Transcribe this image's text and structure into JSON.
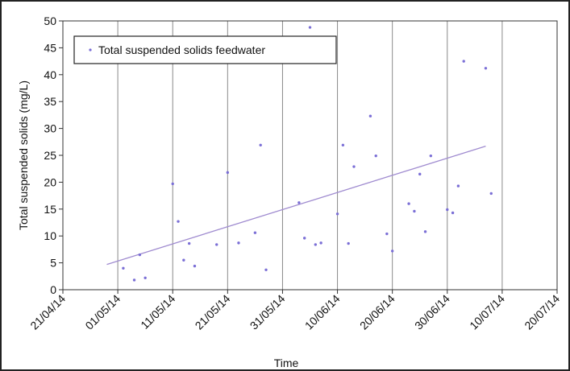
{
  "chart_data": {
    "type": "scatter",
    "title": "",
    "xlabel": "Time",
    "ylabel": "Total suspended solids (mg/L)",
    "xlim": [
      "2014-04-21",
      "2014-07-20"
    ],
    "ylim": [
      0,
      50
    ],
    "x_tick_labels": [
      "21/04/14",
      "01/05/14",
      "11/05/14",
      "21/05/14",
      "31/05/14",
      "10/06/14",
      "20/06/14",
      "30/06/14",
      "10/07/14",
      "20/07/14"
    ],
    "x_ticks": [
      "2014-04-21",
      "2014-05-01",
      "2014-05-11",
      "2014-05-21",
      "2014-05-31",
      "2014-06-10",
      "2014-06-20",
      "2014-06-30",
      "2014-07-10",
      "2014-07-20"
    ],
    "y_ticks": [
      0,
      5,
      10,
      15,
      20,
      25,
      30,
      35,
      40,
      45,
      50
    ],
    "grid": "vertical",
    "legend_position": "top-left",
    "series": [
      {
        "name": "Total suspended solids feedwater",
        "color": "#7b6fd6",
        "points": [
          {
            "x": "2014-05-02",
            "y": 4
          },
          {
            "x": "2014-05-04",
            "y": 1.8
          },
          {
            "x": "2014-05-05",
            "y": 6.5
          },
          {
            "x": "2014-05-06",
            "y": 2.2
          },
          {
            "x": "2014-05-11",
            "y": 19.7
          },
          {
            "x": "2014-05-12",
            "y": 12.7
          },
          {
            "x": "2014-05-13",
            "y": 5.5
          },
          {
            "x": "2014-05-14",
            "y": 8.6
          },
          {
            "x": "2014-05-15",
            "y": 4.4
          },
          {
            "x": "2014-05-19",
            "y": 8.4
          },
          {
            "x": "2014-05-21",
            "y": 21.8
          },
          {
            "x": "2014-05-23",
            "y": 8.7
          },
          {
            "x": "2014-05-26",
            "y": 10.6
          },
          {
            "x": "2014-05-27",
            "y": 26.9
          },
          {
            "x": "2014-05-28",
            "y": 3.7
          },
          {
            "x": "2014-06-03",
            "y": 16.2
          },
          {
            "x": "2014-06-04",
            "y": 9.6
          },
          {
            "x": "2014-06-05",
            "y": 48.8
          },
          {
            "x": "2014-06-06",
            "y": 8.4
          },
          {
            "x": "2014-06-07",
            "y": 8.7
          },
          {
            "x": "2014-06-10",
            "y": 14.1
          },
          {
            "x": "2014-06-11",
            "y": 26.9
          },
          {
            "x": "2014-06-12",
            "y": 8.6
          },
          {
            "x": "2014-06-13",
            "y": 22.9
          },
          {
            "x": "2014-06-16",
            "y": 32.3
          },
          {
            "x": "2014-06-17",
            "y": 24.9
          },
          {
            "x": "2014-06-19",
            "y": 10.4
          },
          {
            "x": "2014-06-20",
            "y": 7.2
          },
          {
            "x": "2014-06-23",
            "y": 16.0
          },
          {
            "x": "2014-06-24",
            "y": 14.6
          },
          {
            "x": "2014-06-25",
            "y": 21.5
          },
          {
            "x": "2014-06-26",
            "y": 10.8
          },
          {
            "x": "2014-06-27",
            "y": 24.9
          },
          {
            "x": "2014-06-30",
            "y": 14.9
          },
          {
            "x": "2014-07-01",
            "y": 14.3
          },
          {
            "x": "2014-07-02",
            "y": 19.3
          },
          {
            "x": "2014-07-03",
            "y": 42.5
          },
          {
            "x": "2014-07-07",
            "y": 41.2
          },
          {
            "x": "2014-07-08",
            "y": 17.9
          }
        ]
      }
    ],
    "trendline": {
      "type": "linear",
      "color": "#a08cd0",
      "start": {
        "x": "2014-04-29",
        "y": 4.7
      },
      "end": {
        "x": "2014-07-07",
        "y": 26.7
      }
    }
  }
}
